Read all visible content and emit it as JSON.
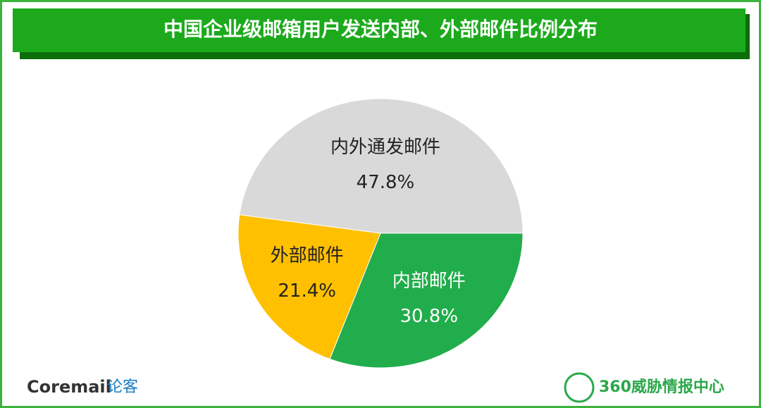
{
  "chart_data": {
    "type": "pie",
    "title": "中国企业级邮箱用户发送内部、外部邮件比例分布",
    "categories": [
      "内部邮件",
      "外部邮件",
      "内外通发邮件"
    ],
    "values": [
      30.8,
      21.4,
      47.8
    ],
    "value_labels": [
      "30.8%",
      "21.4%",
      "47.8%"
    ],
    "colors": [
      "#21ad4b",
      "#ffc000",
      "#d9d9d9"
    ]
  },
  "footer": {
    "left_logo": "Coremail",
    "left_logo_suffix": "论客",
    "right_logo": "360威胁情报中心"
  }
}
